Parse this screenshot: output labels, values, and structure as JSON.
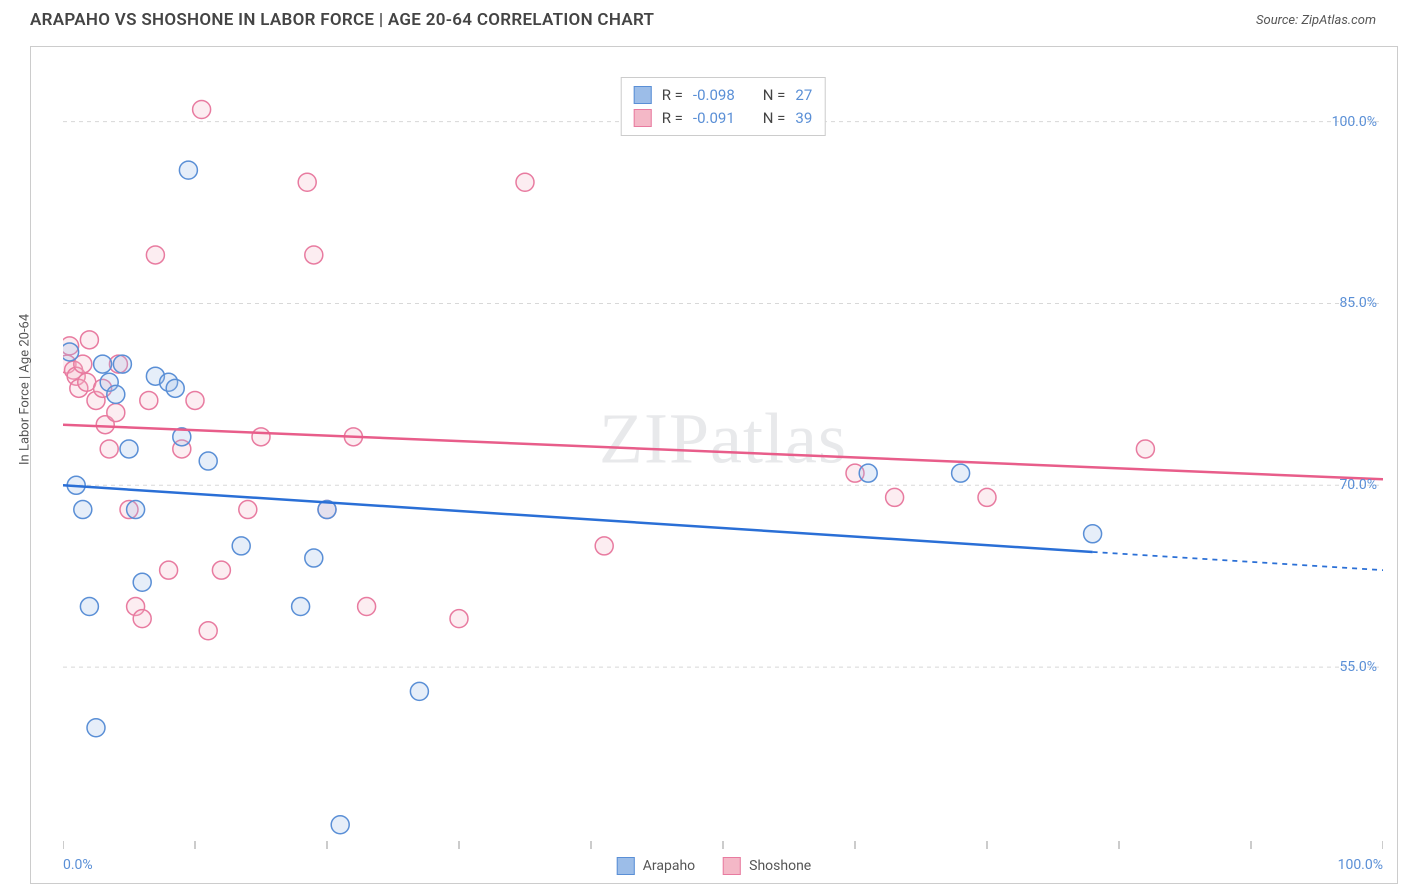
{
  "header": {
    "title": "ARAPAHO VS SHOSHONE IN LABOR FORCE | AGE 20-64 CORRELATION CHART",
    "source_prefix": "Source: ",
    "source_name": "ZipAtlas.com"
  },
  "watermark": "ZIPatlas",
  "chart": {
    "type": "scatter",
    "background_color": "#ffffff",
    "border_color": "#cccccc",
    "grid_color": "#d8d8d8",
    "grid_dash": "4,4",
    "y_axis_label": "In Labor Force | Age 20-64",
    "label_fontsize": 13,
    "xlim": [
      0,
      100
    ],
    "ylim": [
      40,
      105
    ],
    "x_ticks": [
      0,
      10,
      20,
      30,
      40,
      50,
      60,
      70,
      80,
      90,
      100
    ],
    "x_tick_labels": {
      "0": "0.0%",
      "100": "100.0%"
    },
    "y_ticks": [
      55,
      70,
      85,
      100
    ],
    "y_tick_labels": {
      "55": "55.0%",
      "70": "70.0%",
      "85": "85.0%",
      "100": "100.0%"
    },
    "tick_color": "#999999",
    "tick_label_color": "#5a8fd6",
    "tick_fontsize": 14,
    "marker_radius": 9,
    "marker_stroke_width": 1.5,
    "marker_fill_opacity": 0.25,
    "series": {
      "arapaho": {
        "label": "Arapaho",
        "fill": "#9cbde8",
        "stroke": "#5a8fd6",
        "line_color": "#2a6fd6",
        "line_width": 2.5,
        "R": "-0.098",
        "N": "27",
        "trend": {
          "x1": 0,
          "y1": 70.0,
          "x2": 78,
          "y2": 64.5,
          "dash_x2": 100,
          "dash_y2": 63.0
        },
        "points": [
          [
            0.5,
            81
          ],
          [
            1,
            70
          ],
          [
            1.5,
            68
          ],
          [
            2,
            60
          ],
          [
            2.5,
            50
          ],
          [
            3,
            80
          ],
          [
            3.5,
            78.5
          ],
          [
            4,
            77.5
          ],
          [
            4.5,
            80
          ],
          [
            5,
            73
          ],
          [
            5.5,
            68
          ],
          [
            6,
            62
          ],
          [
            7,
            79
          ],
          [
            8,
            78.5
          ],
          [
            8.5,
            78
          ],
          [
            9,
            74
          ],
          [
            9.5,
            96
          ],
          [
            11,
            72
          ],
          [
            13.5,
            65
          ],
          [
            18,
            60
          ],
          [
            19,
            64
          ],
          [
            20,
            68
          ],
          [
            21,
            42
          ],
          [
            27,
            53
          ],
          [
            61,
            71
          ],
          [
            68,
            71
          ],
          [
            78,
            66
          ]
        ]
      },
      "shoshone": {
        "label": "Shoshone",
        "fill": "#f4b8c7",
        "stroke": "#e87ba0",
        "line_color": "#e85d8a",
        "line_width": 2.5,
        "R": "-0.091",
        "N": "39",
        "trend": {
          "x1": 0,
          "y1": 75.0,
          "x2": 100,
          "y2": 70.5
        },
        "points": [
          [
            0.3,
            80
          ],
          [
            0.5,
            81.5
          ],
          [
            0.8,
            79.5
          ],
          [
            1,
            79
          ],
          [
            1.2,
            78
          ],
          [
            1.5,
            80
          ],
          [
            1.8,
            78.5
          ],
          [
            2,
            82
          ],
          [
            2.5,
            77
          ],
          [
            3,
            78
          ],
          [
            3.2,
            75
          ],
          [
            3.5,
            73
          ],
          [
            4,
            76
          ],
          [
            4.2,
            80
          ],
          [
            5,
            68
          ],
          [
            5.5,
            60
          ],
          [
            6,
            59
          ],
          [
            6.5,
            77
          ],
          [
            7,
            89
          ],
          [
            8,
            63
          ],
          [
            9,
            73
          ],
          [
            10,
            77
          ],
          [
            10.5,
            101
          ],
          [
            11,
            58
          ],
          [
            12,
            63
          ],
          [
            14,
            68
          ],
          [
            15,
            74
          ],
          [
            18.5,
            95
          ],
          [
            19,
            89
          ],
          [
            20,
            68
          ],
          [
            22,
            74
          ],
          [
            23,
            60
          ],
          [
            30,
            59
          ],
          [
            35,
            95
          ],
          [
            41,
            65
          ],
          [
            60,
            71
          ],
          [
            63,
            69
          ],
          [
            70,
            69
          ],
          [
            82,
            73
          ]
        ]
      }
    },
    "stats_legend": {
      "r_label": "R =",
      "n_label": "N ="
    }
  }
}
